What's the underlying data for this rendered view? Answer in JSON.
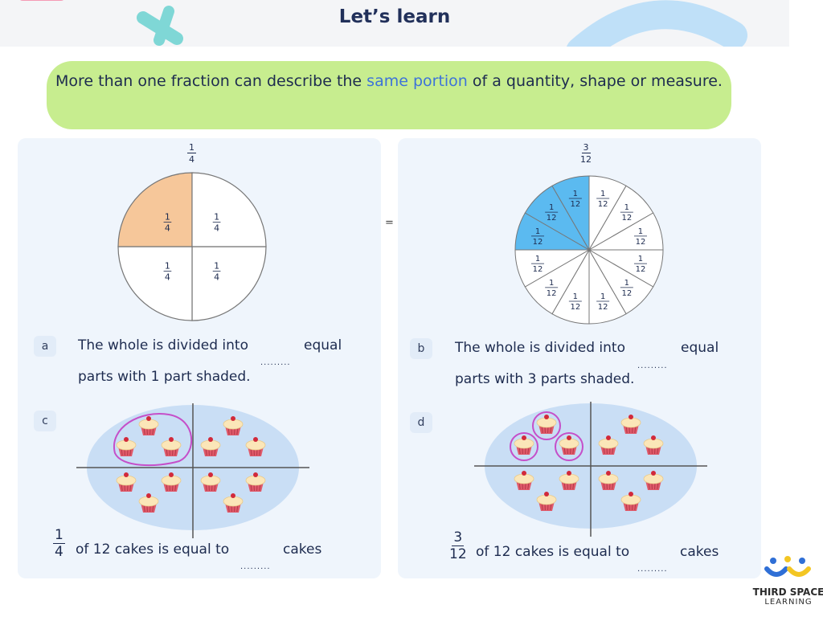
{
  "header": {
    "title": "Let’s learn"
  },
  "banner": {
    "text_before": "More than one fraction can describe the ",
    "highlight": "same portion",
    "text_after": " of a quantity, shape or measure."
  },
  "panel_a": {
    "top_fraction": {
      "num": "1",
      "den": "4"
    },
    "sector_labels": {
      "num": "1",
      "den": "4"
    },
    "letter": "a",
    "line1_before": "The whole is divided into",
    "line1_after": "equal",
    "line2": "parts with 1 part shaded.",
    "blank": "........."
  },
  "equals": "=",
  "panel_b": {
    "top_fraction": {
      "num": "3",
      "den": "12"
    },
    "sector_labels": {
      "num": "1",
      "den": "12"
    },
    "letter": "b",
    "line1_before": "The whole is divided into",
    "line1_after": "equal",
    "line2": "parts with 3 parts shaded.",
    "blank": "........."
  },
  "panel_c": {
    "letter": "c",
    "fraction": {
      "num": "1",
      "den": "4"
    },
    "text": "of 12 cakes is equal to",
    "unit": "cakes",
    "blank": "........."
  },
  "panel_d": {
    "letter": "d",
    "fraction": {
      "num": "3",
      "den": "12"
    },
    "text": "of 12 cakes is equal to",
    "unit": "cakes",
    "blank": "........."
  },
  "logo": {
    "line1": "THIRD SPACE",
    "line2": "LEARNING"
  },
  "colors": {
    "quarter_shade": "#f6c79a",
    "twelfth_shade": "#5bbaf0",
    "ellipse": "#c9def5",
    "circle_outline": "#c54fc9",
    "banner": "#c7ed8f",
    "highlight": "#3d73d9"
  }
}
